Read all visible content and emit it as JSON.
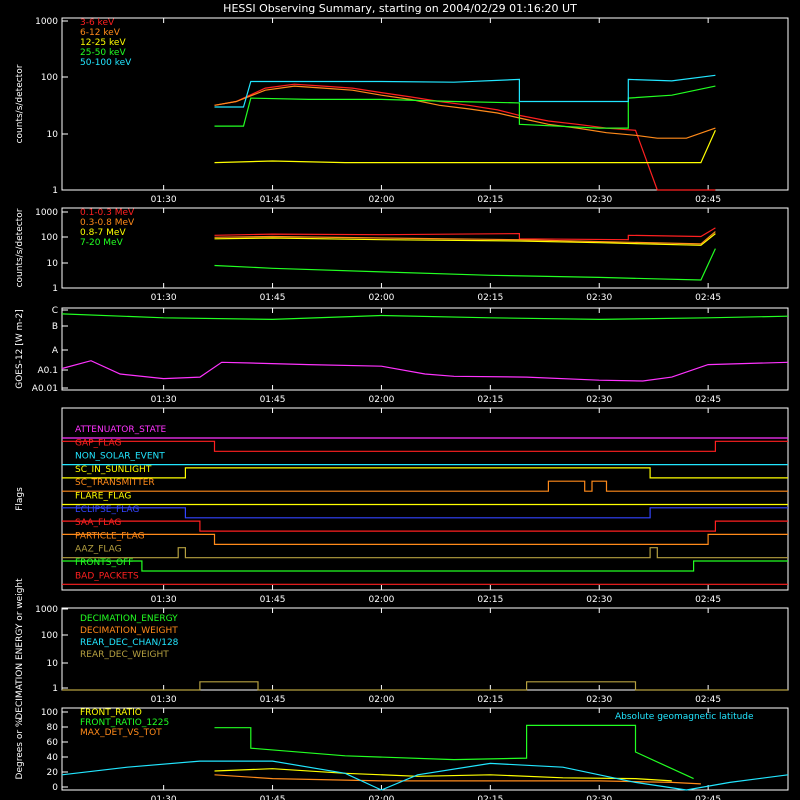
{
  "title": "HESSI Observing Summary, starting on 2004/02/29 01:16:20 UT",
  "time_ticks": [
    "01:30",
    "01:45",
    "02:00",
    "02:15",
    "02:30",
    "02:45"
  ],
  "colors": {
    "bg": "#000000",
    "axes": "#ffffff",
    "red": "#ff2020",
    "orange": "#ff8a1a",
    "yellow": "#ffff00",
    "green": "#22ff22",
    "cyan": "#22e6ff",
    "magenta": "#ff33ff",
    "blue": "#3344ff",
    "olive": "#b5a040"
  },
  "chart_data": [
    {
      "id": "hessi-lightcurves",
      "type": "line",
      "ylabel": "counts/s/detector",
      "yscale": "log",
      "y_ticks": [
        "1",
        "10",
        "100",
        "1000"
      ],
      "ylim": [
        1,
        1000
      ],
      "series": [
        {
          "name": "3-6 keV",
          "color": "red",
          "segments": [
            {
              "t": [
                "01:37",
                "01:40",
                "01:44",
                "01:48",
                "01:52",
                "01:56",
                "02:00",
                "02:04",
                "02:08",
                "02:12",
                "02:16",
                "02:19",
                "02:23",
                "02:27",
                "02:31",
                "02:35",
                "02:38",
                "02:42",
                "02:46"
              ],
              "v": [
                30,
                35,
                60,
                70,
                65,
                60,
                50,
                42,
                35,
                30,
                25,
                20,
                16,
                14,
                12,
                11,
                1,
                1,
                1
              ]
            }
          ]
        },
        {
          "name": "6-12 keV",
          "color": "orange",
          "segments": [
            {
              "t": [
                "01:37",
                "01:40",
                "01:44",
                "01:48",
                "01:52",
                "01:56",
                "02:00",
                "02:04",
                "02:08",
                "02:12",
                "02:16",
                "02:19",
                "02:23",
                "02:27",
                "02:31",
                "02:35",
                "02:38",
                "02:42",
                "02:46"
              ],
              "v": [
                30,
                35,
                55,
                65,
                60,
                55,
                45,
                38,
                30,
                26,
                22,
                18,
                14,
                12,
                10,
                9,
                8,
                8,
                12
              ]
            }
          ]
        },
        {
          "name": "12-25 keV",
          "color": "yellow",
          "segments": [
            {
              "t": [
                "01:37",
                "01:45",
                "01:55",
                "02:05",
                "02:15",
                "02:25",
                "02:35",
                "02:44",
                "02:46"
              ],
              "v": [
                3,
                3.2,
                3,
                3,
                3,
                3,
                3,
                3,
                11
              ]
            }
          ]
        },
        {
          "name": "25-50 keV",
          "color": "green",
          "segments": [
            {
              "t": [
                "01:37",
                "01:41",
                "01:42",
                "01:50",
                "02:00",
                "02:10",
                "02:19",
                "02:19",
                "02:30",
                "02:34",
                "02:34",
                "02:40",
                "02:46"
              ],
              "v": [
                13,
                13,
                40,
                38,
                38,
                35,
                33,
                14,
                12,
                12,
                40,
                45,
                65
              ]
            }
          ]
        },
        {
          "name": "50-100 keV",
          "color": "cyan",
          "segments": [
            {
              "t": [
                "01:37",
                "01:41",
                "01:42",
                "01:50",
                "02:00",
                "02:10",
                "02:19",
                "02:19",
                "02:30",
                "02:34",
                "02:34",
                "02:40",
                "02:46"
              ],
              "v": [
                28,
                28,
                78,
                78,
                78,
                76,
                85,
                35,
                35,
                35,
                85,
                80,
                100
              ]
            }
          ]
        }
      ]
    },
    {
      "id": "hessi-highenergy",
      "type": "line",
      "ylabel": "counts/s/detector",
      "yscale": "log",
      "y_ticks": [
        "1",
        "10",
        "100",
        "1000"
      ],
      "ylim": [
        1,
        1000
      ],
      "series": [
        {
          "name": "0.1-0.3 MeV",
          "color": "red",
          "segments": [
            {
              "t": [
                "01:37",
                "01:45",
                "02:00",
                "02:19",
                "02:19",
                "02:34",
                "02:34",
                "02:44",
                "02:46"
              ],
              "v": [
                95,
                105,
                100,
                110,
                70,
                65,
                95,
                85,
                180
              ]
            }
          ]
        },
        {
          "name": "0.3-0.8 MeV",
          "color": "orange",
          "segments": [
            {
              "t": [
                "01:37",
                "01:45",
                "02:00",
                "02:19",
                "02:30",
                "02:44",
                "02:46"
              ],
              "v": [
                80,
                85,
                75,
                65,
                55,
                45,
                130
              ]
            }
          ]
        },
        {
          "name": "0.8-7 MeV",
          "color": "yellow",
          "segments": [
            {
              "t": [
                "01:37",
                "01:45",
                "02:00",
                "02:19",
                "02:30",
                "02:44",
                "02:46"
              ],
              "v": [
                70,
                75,
                65,
                58,
                50,
                40,
                110
              ]
            }
          ]
        },
        {
          "name": "7-20 MeV",
          "color": "green",
          "segments": [
            {
              "t": [
                "01:37",
                "01:45",
                "02:00",
                "02:15",
                "02:30",
                "02:44",
                "02:46"
              ],
              "v": [
                7,
                5.5,
                4,
                3,
                2.5,
                2,
                30
              ]
            }
          ]
        }
      ]
    },
    {
      "id": "goes12",
      "type": "line",
      "ylabel": "GOES-12 [W m-2]",
      "yscale": "log",
      "y_ticks": [
        "A0.01",
        "A0.1",
        "A",
        "B",
        "C"
      ],
      "series": [
        {
          "name": "",
          "color": "green",
          "segments": [
            {
              "t": [
                "01:16",
                "01:30",
                "01:45",
                "02:00",
                "02:15",
                "02:30",
                "02:45",
                "02:56"
              ],
              "v": [
                0.95,
                0.9,
                0.88,
                0.93,
                0.9,
                0.88,
                0.9,
                0.92
              ]
            }
          ]
        },
        {
          "name": "",
          "color": "magenta",
          "segments": [
            {
              "t": [
                "01:16",
                "01:20",
                "01:24",
                "01:30",
                "01:35",
                "01:38",
                "01:42",
                "01:50",
                "02:00",
                "02:06",
                "02:10",
                "02:20",
                "02:30",
                "02:36",
                "02:40",
                "02:45",
                "02:56"
              ],
              "v": [
                0.25,
                0.35,
                0.18,
                0.12,
                0.14,
                0.33,
                0.32,
                0.3,
                0.28,
                0.18,
                0.15,
                0.14,
                0.1,
                0.09,
                0.14,
                0.3,
                0.33
              ]
            }
          ]
        }
      ]
    },
    {
      "id": "flags",
      "type": "line",
      "ylabel": "Flags",
      "series": [
        {
          "name": "ATTENUATOR_STATE",
          "color": "magenta",
          "segments": [
            {
              "t": [
                "01:16",
                "02:56"
              ],
              "v": [
                0,
                0
              ]
            }
          ]
        },
        {
          "name": "GAP_FLAG",
          "color": "red",
          "segments": [
            {
              "t": [
                "01:16",
                "01:37",
                "01:37",
                "02:46",
                "02:46",
                "02:56"
              ],
              "v": [
                1,
                1,
                0,
                0,
                1,
                1
              ]
            }
          ]
        },
        {
          "name": "NON_SOLAR_EVENT",
          "color": "cyan",
          "segments": [
            {
              "t": [
                "01:16",
                "02:56"
              ],
              "v": [
                0,
                0
              ]
            }
          ]
        },
        {
          "name": "SC_IN_SUNLIGHT",
          "color": "yellow",
          "segments": [
            {
              "t": [
                "01:16",
                "01:33",
                "01:33",
                "02:37",
                "02:37",
                "02:56"
              ],
              "v": [
                0,
                0,
                1,
                1,
                0,
                0
              ]
            }
          ]
        },
        {
          "name": "SC_TRANSMITTER",
          "color": "orange",
          "segments": [
            {
              "t": [
                "01:16",
                "02:23",
                "02:23",
                "02:28",
                "02:28",
                "02:29",
                "02:29",
                "02:31",
                "02:31",
                "02:56"
              ],
              "v": [
                0,
                0,
                1,
                1,
                0,
                0,
                1,
                1,
                0,
                0
              ]
            }
          ]
        },
        {
          "name": "FLARE_FLAG",
          "color": "yellow",
          "segments": [
            {
              "t": [
                "01:16",
                "02:56"
              ],
              "v": [
                0,
                0
              ]
            }
          ]
        },
        {
          "name": "ECLIPSE_FLAG",
          "color": "blue",
          "segments": [
            {
              "t": [
                "01:16",
                "01:33",
                "01:33",
                "02:37",
                "02:37",
                "02:56"
              ],
              "v": [
                1,
                1,
                0,
                0,
                1,
                1
              ]
            }
          ]
        },
        {
          "name": "SAA_FLAG",
          "color": "red",
          "segments": [
            {
              "t": [
                "01:16",
                "01:35",
                "01:35",
                "02:46",
                "02:46",
                "02:56"
              ],
              "v": [
                1,
                1,
                0,
                0,
                1,
                1
              ]
            }
          ]
        },
        {
          "name": "PARTICLE_FLAG",
          "color": "orange",
          "segments": [
            {
              "t": [
                "01:16",
                "01:37",
                "01:37",
                "02:45",
                "02:45",
                "02:56"
              ],
              "v": [
                1,
                1,
                0,
                0,
                1,
                1
              ]
            }
          ]
        },
        {
          "name": "AAZ_FLAG",
          "color": "olive",
          "segments": [
            {
              "t": [
                "01:16",
                "01:32",
                "01:32",
                "01:33",
                "01:33",
                "02:37",
                "02:37",
                "02:38",
                "02:38",
                "02:56"
              ],
              "v": [
                0,
                0,
                1,
                1,
                0,
                0,
                1,
                1,
                0,
                0
              ]
            }
          ]
        },
        {
          "name": "FRONTS_OFF",
          "color": "green",
          "segments": [
            {
              "t": [
                "01:16",
                "01:27",
                "01:27",
                "02:43",
                "02:43",
                "02:56"
              ],
              "v": [
                1,
                1,
                0,
                0,
                1,
                1
              ]
            }
          ]
        },
        {
          "name": "BAD_PACKETS",
          "color": "red",
          "segments": [
            {
              "t": [
                "01:16",
                "02:56"
              ],
              "v": [
                0,
                0
              ]
            }
          ]
        }
      ]
    },
    {
      "id": "decimation",
      "type": "line",
      "ylabel": "DECIMATION ENERGY or weight",
      "yscale": "log",
      "y_ticks": [
        "1",
        "10",
        "100",
        "1000"
      ],
      "ylim": [
        1,
        1000
      ],
      "series": [
        {
          "name": "DECIMATION_ENERGY",
          "color": "green",
          "segments": []
        },
        {
          "name": "DECIMATION_WEIGHT",
          "color": "orange",
          "segments": []
        },
        {
          "name": "REAR_DEC_CHAN/128",
          "color": "cyan",
          "segments": []
        },
        {
          "name": "REAR_DEC_WEIGHT",
          "color": "olive",
          "segments": [
            {
              "t": [
                "01:16",
                "01:35",
                "01:35",
                "01:43",
                "01:43",
                "02:20",
                "02:20",
                "02:35",
                "02:35",
                "02:56"
              ],
              "v": [
                1,
                1,
                2,
                2,
                1,
                1,
                2,
                2,
                1,
                1
              ]
            }
          ]
        }
      ]
    },
    {
      "id": "ratios",
      "type": "line",
      "ylabel": "Degrees or %",
      "y_ticks": [
        "0",
        "20",
        "40",
        "60",
        "80",
        "100"
      ],
      "ylim": [
        0,
        100
      ],
      "annotations": [
        "Absolute geomagnetic latitude"
      ],
      "series": [
        {
          "name": "FRONT_RATIO",
          "color": "yellow",
          "segments": [
            {
              "t": [
                "01:37",
                "01:45",
                "01:55",
                "02:05",
                "02:15",
                "02:25",
                "02:35",
                "02:40"
              ],
              "v": [
                25,
                28,
                22,
                18,
                20,
                16,
                15,
                12
              ]
            }
          ]
        },
        {
          "name": "FRONT_RATIO_1225",
          "color": "green",
          "segments": [
            {
              "t": [
                "01:37",
                "01:42",
                "01:42",
                "01:55",
                "02:10",
                "02:20",
                "02:20",
                "02:35",
                "02:35",
                "02:43"
              ],
              "v": [
                82,
                82,
                55,
                45,
                40,
                42,
                85,
                85,
                50,
                15
              ]
            }
          ]
        },
        {
          "name": "MAX_DET_VS_TOT",
          "color": "orange",
          "segments": [
            {
              "t": [
                "01:37",
                "01:45",
                "02:00",
                "02:15",
                "02:30",
                "02:40",
                "02:44"
              ],
              "v": [
                20,
                15,
                12,
                12,
                12,
                10,
                8
              ]
            }
          ]
        },
        {
          "name": "Absolute geomagnetic latitude",
          "color": "cyan",
          "segments": [
            {
              "t": [
                "01:16",
                "01:25",
                "01:35",
                "01:45",
                "01:55",
                "02:00",
                "02:05",
                "02:15",
                "02:25",
                "02:35",
                "02:42",
                "02:48",
                "02:56"
              ],
              "v": [
                20,
                30,
                38,
                38,
                22,
                0,
                20,
                35,
                30,
                10,
                0,
                10,
                20
              ]
            }
          ]
        }
      ]
    }
  ]
}
